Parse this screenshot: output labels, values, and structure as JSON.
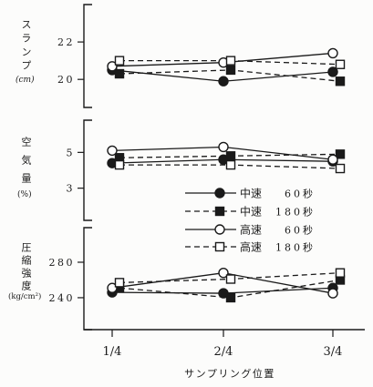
{
  "chart_data": {
    "type": "line",
    "xlabel": "サンプリング位置",
    "categories": [
      "1/4",
      "2/4",
      "3/4"
    ],
    "grid": false,
    "legend_position": "right",
    "series": [
      {
        "speed": "中速",
        "time": "60秒",
        "marker": "filled-circle",
        "line": "solid"
      },
      {
        "speed": "中速",
        "time": "180秒",
        "marker": "filled-square",
        "line": "dashed"
      },
      {
        "speed": "高速",
        "time": "60秒",
        "marker": "open-circle",
        "line": "solid"
      },
      {
        "speed": "高速",
        "time": "180秒",
        "marker": "open-square",
        "line": "dashed"
      }
    ],
    "panels": [
      {
        "ylabel": "スランプ",
        "unit": "(cm)",
        "ylim": [
          18.5,
          24.0
        ],
        "yticks": [
          22,
          20
        ],
        "values": [
          [
            20.5,
            19.9,
            20.4
          ],
          [
            20.3,
            20.5,
            19.9
          ],
          [
            20.7,
            20.9,
            21.4
          ],
          [
            21.0,
            21.0,
            20.8
          ]
        ]
      },
      {
        "ylabel": "空気量",
        "unit": "(%)",
        "ylim": [
          1.2,
          6.8
        ],
        "yticks": [
          5,
          3
        ],
        "values": [
          [
            4.4,
            4.6,
            4.5
          ],
          [
            4.7,
            4.8,
            4.9
          ],
          [
            5.1,
            5.3,
            4.6
          ],
          [
            4.3,
            4.3,
            4.1
          ]
        ]
      },
      {
        "ylabel": "圧縮強度",
        "unit": "(kg/cm²)",
        "ylim": [
          204,
          319
        ],
        "yticks": [
          280,
          240
        ],
        "values": [
          [
            246,
            245,
            251
          ],
          [
            251,
            240,
            260
          ],
          [
            251,
            268,
            245
          ],
          [
            257,
            261,
            268
          ]
        ]
      }
    ]
  }
}
